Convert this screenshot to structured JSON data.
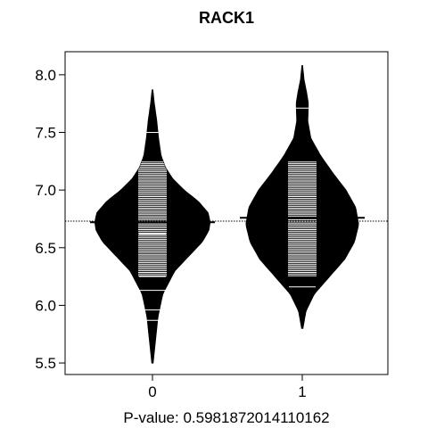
{
  "chart_data": {
    "type": "beanplot",
    "title": "RACK1",
    "xlabel": "P-value: 0.5981872014110162",
    "ylabel": "",
    "ylim": [
      5.4,
      8.2
    ],
    "y_ticks": [
      "5.5",
      "6.0",
      "6.5",
      "7.0",
      "7.5",
      "8.0"
    ],
    "categories": [
      "0",
      "1"
    ],
    "overall_mean": 6.73,
    "series": [
      {
        "category": "0",
        "mean": 6.72,
        "min": 5.5,
        "max": 7.87,
        "density": [
          [
            5.5,
            0.01
          ],
          [
            5.7,
            0.05
          ],
          [
            5.9,
            0.09
          ],
          [
            6.1,
            0.17
          ],
          [
            6.3,
            0.37
          ],
          [
            6.45,
            0.64
          ],
          [
            6.55,
            0.82
          ],
          [
            6.65,
            0.93
          ],
          [
            6.72,
            0.95
          ],
          [
            6.8,
            0.92
          ],
          [
            6.9,
            0.76
          ],
          [
            7.0,
            0.52
          ],
          [
            7.1,
            0.33
          ],
          [
            7.2,
            0.21
          ],
          [
            7.3,
            0.14
          ],
          [
            7.45,
            0.1
          ],
          [
            7.6,
            0.07
          ],
          [
            7.75,
            0.03
          ],
          [
            7.87,
            0.005
          ]
        ],
        "observations": [
          5.87,
          5.96,
          6.13,
          6.25,
          6.62,
          7.5
        ]
      },
      {
        "category": "1",
        "mean": 6.76,
        "min": 5.8,
        "max": 8.08,
        "density": [
          [
            5.8,
            0.01
          ],
          [
            5.95,
            0.06
          ],
          [
            6.1,
            0.2
          ],
          [
            6.25,
            0.45
          ],
          [
            6.4,
            0.7
          ],
          [
            6.55,
            0.86
          ],
          [
            6.7,
            0.93
          ],
          [
            6.85,
            0.88
          ],
          [
            7.0,
            0.72
          ],
          [
            7.15,
            0.5
          ],
          [
            7.3,
            0.3
          ],
          [
            7.45,
            0.14
          ],
          [
            7.6,
            0.09
          ],
          [
            7.75,
            0.1
          ],
          [
            7.85,
            0.07
          ],
          [
            7.95,
            0.03
          ],
          [
            8.08,
            0.005
          ]
        ],
        "observations": [
          6.16,
          7.71
        ]
      }
    ],
    "grid": false,
    "legend": "none"
  }
}
